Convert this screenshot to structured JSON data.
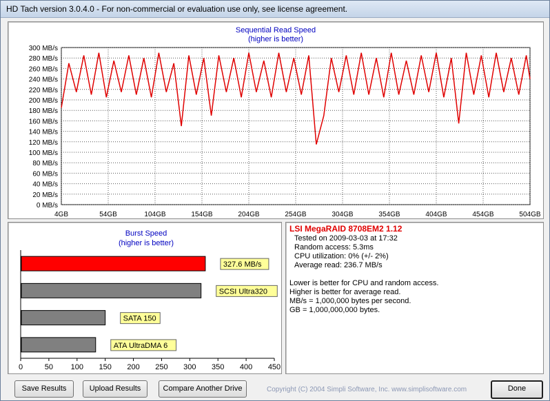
{
  "window": {
    "title": "HD Tach version 3.0.4.0  - For non-commercial or evaluation use only, see license agreement."
  },
  "chart_data": [
    {
      "type": "line",
      "title": "Sequential Read Speed",
      "subtitle": "(higher is better)",
      "yunit": "MB/s",
      "y_ticks": [
        "300 MB/s",
        "280 MB/s",
        "260 MB/s",
        "240 MB/s",
        "220 MB/s",
        "200 MB/s",
        "180 MB/s",
        "160 MB/s",
        "140 MB/s",
        "120 MB/s",
        "100 MB/s",
        "80 MB/s",
        "60 MB/s",
        "40 MB/s",
        "20 MB/s",
        "0 MB/s"
      ],
      "x_ticks": [
        "4GB",
        "54GB",
        "104GB",
        "154GB",
        "204GB",
        "254GB",
        "304GB",
        "354GB",
        "404GB",
        "454GB",
        "504GB"
      ],
      "ylim": [
        0,
        300
      ],
      "xlim": [
        4,
        504
      ],
      "grid": true,
      "series": [
        {
          "color": "#e00000",
          "x": [
            4,
            12,
            20,
            28,
            36,
            44,
            52,
            60,
            68,
            76,
            84,
            92,
            100,
            108,
            116,
            124,
            132,
            140,
            148,
            156,
            164,
            172,
            180,
            188,
            196,
            204,
            212,
            220,
            228,
            236,
            244,
            252,
            260,
            268,
            276,
            284,
            292,
            300,
            308,
            316,
            324,
            332,
            340,
            348,
            356,
            364,
            372,
            380,
            388,
            396,
            404,
            412,
            420,
            428,
            436,
            444,
            452,
            460,
            468,
            476,
            484,
            492,
            500,
            504
          ],
          "values": [
            185,
            270,
            215,
            285,
            210,
            290,
            205,
            275,
            215,
            285,
            210,
            280,
            205,
            290,
            215,
            270,
            150,
            285,
            210,
            280,
            170,
            285,
            215,
            280,
            205,
            290,
            215,
            275,
            205,
            290,
            215,
            280,
            210,
            285,
            115,
            170,
            280,
            215,
            285,
            210,
            290,
            210,
            280,
            205,
            290,
            210,
            275,
            210,
            285,
            215,
            290,
            205,
            280,
            155,
            290,
            210,
            285,
            205,
            290,
            215,
            280,
            210,
            285,
            240
          ]
        }
      ]
    },
    {
      "type": "bar",
      "title": "Burst Speed",
      "subtitle": "(higher is better)",
      "categories": [
        "LSI MegaRAID 8708EM2 1.12",
        "SCSI Ultra320",
        "SATA 150",
        "ATA UltraDMA 6"
      ],
      "values": [
        327.6,
        320,
        150,
        133
      ],
      "bar_labels": [
        "327.6 MB/s",
        "SCSI Ultra320",
        "SATA 150",
        "ATA UltraDMA 6"
      ],
      "bar_colors": [
        "#ff0000",
        "#808080",
        "#808080",
        "#808080"
      ],
      "x_ticks": [
        "0",
        "50",
        "100",
        "150",
        "200",
        "250",
        "300",
        "350",
        "400",
        "450"
      ],
      "xlim": [
        0,
        450
      ]
    }
  ],
  "info": {
    "drive_name": "LSI MegaRAID 8708EM2 1.12",
    "tested_on": "Tested on 2009-03-03 at 17:32",
    "random_access": "Random access: 5.3ms",
    "cpu_utilization": "CPU utilization: 0% (+/- 2%)",
    "average_read": "Average read: 236.7 MB/s",
    "notes": [
      "Lower is better for CPU and random access.",
      "Higher is better for average read.",
      "MB/s = 1,000,000 bytes per second.",
      "GB = 1,000,000,000 bytes."
    ]
  },
  "buttons": {
    "save": "Save Results",
    "upload": "Upload Results",
    "compare": "Compare Another Drive",
    "done": "Done"
  },
  "copyright": "Copyright (C) 2004 Simpli Software, Inc. www.simplisoftware.com"
}
